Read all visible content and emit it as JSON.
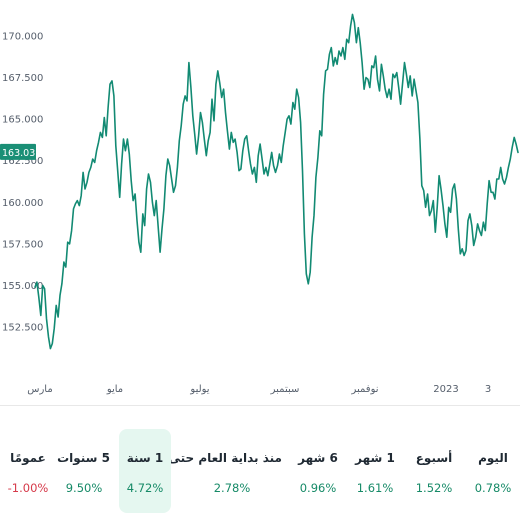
{
  "colors": {
    "line": "#128a73",
    "positive": "#168a67",
    "negative": "#d63a4a",
    "active_bg": "#e5f7f0"
  },
  "chart_data": {
    "type": "line",
    "current_value_label": "163.033",
    "y_ticks": [
      "152.500",
      "155.000",
      "157.500",
      "160.000",
      "162.500",
      "165.000",
      "167.500",
      "170.000"
    ],
    "x_ticks": [
      "مارس",
      "مايو",
      "يوليو",
      "سبتمبر",
      "نوفمبر",
      "2023",
      "3"
    ],
    "ylim": [
      151.0,
      172.0
    ],
    "grid": false,
    "series": [
      {
        "values": [
          154.9,
          155.2,
          154.3,
          153.2,
          155.0,
          154.8,
          153.0,
          151.9,
          151.2,
          151.5,
          152.4,
          153.8,
          153.1,
          154.4,
          155.1,
          156.4,
          156.1,
          157.6,
          157.5,
          158.3,
          159.6,
          159.9,
          160.1,
          159.8,
          160.4,
          161.8,
          160.8,
          161.2,
          161.8,
          162.1,
          162.6,
          162.4,
          163.1,
          163.6,
          164.2,
          163.9,
          165.1,
          164.0,
          165.7,
          167.1,
          167.3,
          166.4,
          163.4,
          161.9,
          160.3,
          162.3,
          163.8,
          163.1,
          163.8,
          162.9,
          161.3,
          160.1,
          160.5,
          158.9,
          157.6,
          157.0,
          159.3,
          158.6,
          160.8,
          161.7,
          161.2,
          160.0,
          159.2,
          160.1,
          158.5,
          157.0,
          158.4,
          159.6,
          161.6,
          162.6,
          162.2,
          161.4,
          160.6,
          161.0,
          162.1,
          163.7,
          164.6,
          165.9,
          166.4,
          166.1,
          168.4,
          166.9,
          165.2,
          164.1,
          162.9,
          164.0,
          165.4,
          164.8,
          163.8,
          162.8,
          163.7,
          164.2,
          166.2,
          164.9,
          167.1,
          167.9,
          167.2,
          166.3,
          166.8,
          165.4,
          164.3,
          163.2,
          164.2,
          163.6,
          163.8,
          163.0,
          161.9,
          162.0,
          163.1,
          163.8,
          164.0,
          163.1,
          162.3,
          161.7,
          162.1,
          161.2,
          162.8,
          163.5,
          162.6,
          161.7,
          162.1,
          161.6,
          162.3,
          163.0,
          162.2,
          161.8,
          162.2,
          162.9,
          162.4,
          163.4,
          164.2,
          165.0,
          165.2,
          164.7,
          166.0,
          165.6,
          166.8,
          166.3,
          164.8,
          161.9,
          158.1,
          155.7,
          155.1,
          155.8,
          157.9,
          159.2,
          161.5,
          162.7,
          164.3,
          164.0,
          166.5,
          167.9,
          168.0,
          168.9,
          169.3,
          168.2,
          168.7,
          168.3,
          169.1,
          168.8,
          169.3,
          168.6,
          169.8,
          169.6,
          170.6,
          171.3,
          170.8,
          169.6,
          170.5,
          169.6,
          168.4,
          166.8,
          167.5,
          167.4,
          166.9,
          168.2,
          168.1,
          168.8,
          167.4,
          166.7,
          168.3,
          167.6,
          166.8,
          166.3,
          166.8,
          166.2,
          167.7,
          167.5,
          167.8,
          166.9,
          165.9,
          167.1,
          168.4,
          167.7,
          166.9,
          167.6,
          166.4,
          167.4,
          166.7,
          166.0,
          163.8,
          161.0,
          160.7,
          159.7,
          160.5,
          159.2,
          159.5,
          160.1,
          158.2,
          159.7,
          161.6,
          160.8,
          159.8,
          158.7,
          157.9,
          159.7,
          159.4,
          160.8,
          161.1,
          160.2,
          158.4,
          156.9,
          157.2,
          156.8,
          157.1,
          158.9,
          159.3,
          158.6,
          157.4,
          157.9,
          158.7,
          158.3,
          158.0,
          158.8,
          158.3,
          159.9,
          161.3,
          160.6,
          160.6,
          160.2,
          161.4,
          161.4,
          162.1,
          161.4,
          161.1,
          161.5,
          162.1,
          162.6,
          163.3,
          163.9,
          163.5,
          163.0
        ]
      }
    ]
  },
  "periods": [
    {
      "label": "اليوم",
      "value": "0.78%",
      "negative": false,
      "active": false
    },
    {
      "label": "أسبوع",
      "value": "1.52%",
      "negative": false,
      "active": false
    },
    {
      "label": "1 شهر",
      "value": "1.61%",
      "negative": false,
      "active": false
    },
    {
      "label": "6 شهر",
      "value": "0.96%",
      "negative": false,
      "active": false
    },
    {
      "label": "منذ بداية العام حتى اليوم",
      "value": "2.78%",
      "negative": false,
      "active": false
    },
    {
      "label": "1 سنة",
      "value": "4.72%",
      "negative": false,
      "active": true
    },
    {
      "label": "5 سنوات",
      "value": "9.50%",
      "negative": false,
      "active": false
    },
    {
      "label": "عمومًا",
      "value": "-1.00%",
      "negative": true,
      "active": false
    }
  ]
}
